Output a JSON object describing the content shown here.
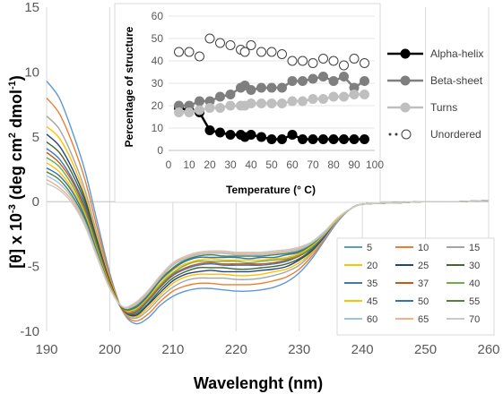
{
  "chart_data": [
    {
      "type": "line",
      "title": "",
      "xlabel": "Wavelenght (nm)",
      "ylabel": "[θ] x 10⁻³ (deg cm² dmol⁻¹)",
      "ylabel_parts": [
        "[θ] x 10",
        "-3",
        " (deg cm",
        "2",
        " dmol",
        "-1",
        ")"
      ],
      "xlim": [
        190,
        260
      ],
      "ylim": [
        -10,
        15
      ],
      "x_ticks": [
        190,
        200,
        210,
        220,
        230,
        240,
        250,
        260
      ],
      "y_ticks": [
        -10,
        -5,
        0,
        5,
        10,
        15
      ],
      "x_tick_labels": [
        "190",
        "200",
        "210",
        "220",
        "230",
        "240",
        "250",
        "260"
      ],
      "y_tick_labels": [
        "-10",
        "-5",
        "0",
        "5",
        "10",
        "15"
      ],
      "grid": "vertical",
      "legend_position": "bottom-right",
      "x": [
        190,
        192,
        194,
        196,
        198,
        200,
        202,
        204,
        206,
        208,
        210,
        212,
        214,
        216,
        218,
        220,
        222,
        224,
        226,
        228,
        230,
        232,
        234,
        236,
        238,
        240,
        245,
        250,
        255,
        260
      ],
      "series": [
        {
          "name": "5",
          "color": "#5B9BD5",
          "values": [
            9.3,
            8.0,
            5.5,
            2.5,
            -1.5,
            -5.5,
            -8.4,
            -9.4,
            -9.0,
            -8.0,
            -7.3,
            -6.9,
            -6.7,
            -6.7,
            -6.8,
            -6.9,
            -6.9,
            -6.8,
            -6.6,
            -6.2,
            -5.5,
            -4.4,
            -3.0,
            -1.6,
            -0.6,
            -0.2,
            -0.1,
            0.0,
            0.0,
            0.1
          ]
        },
        {
          "name": "10",
          "color": "#ED7D31",
          "values": [
            8.0,
            6.8,
            4.6,
            1.8,
            -2.0,
            -5.7,
            -8.4,
            -9.2,
            -8.7,
            -7.7,
            -6.9,
            -6.5,
            -6.3,
            -6.3,
            -6.4,
            -6.4,
            -6.4,
            -6.3,
            -6.1,
            -5.8,
            -5.2,
            -4.2,
            -2.9,
            -1.5,
            -0.6,
            -0.2,
            -0.1,
            0.0,
            0.0,
            0.1
          ]
        },
        {
          "name": "15",
          "color": "#A5A5A5",
          "values": [
            6.6,
            5.6,
            3.6,
            1.0,
            -2.5,
            -5.9,
            -8.4,
            -9.0,
            -8.4,
            -7.4,
            -6.6,
            -6.1,
            -5.9,
            -5.9,
            -5.9,
            -6.0,
            -6.0,
            -5.9,
            -5.7,
            -5.4,
            -4.9,
            -4.0,
            -2.8,
            -1.5,
            -0.6,
            -0.2,
            -0.1,
            0.0,
            0.0,
            0.1
          ]
        },
        {
          "name": "20",
          "color": "#FFC000",
          "values": [
            5.8,
            4.9,
            3.1,
            0.6,
            -2.8,
            -6.0,
            -8.3,
            -8.9,
            -8.2,
            -7.2,
            -6.3,
            -5.8,
            -5.6,
            -5.6,
            -5.6,
            -5.7,
            -5.7,
            -5.6,
            -5.4,
            -5.2,
            -4.7,
            -3.9,
            -2.7,
            -1.4,
            -0.6,
            -0.2,
            -0.1,
            0.0,
            0.0,
            0.1
          ]
        },
        {
          "name": "25",
          "color": "#264478",
          "values": [
            5.2,
            4.3,
            2.6,
            0.3,
            -3.0,
            -6.1,
            -8.3,
            -8.8,
            -8.0,
            -7.0,
            -6.1,
            -5.6,
            -5.4,
            -5.3,
            -5.4,
            -5.4,
            -5.4,
            -5.3,
            -5.2,
            -5.0,
            -4.5,
            -3.8,
            -2.7,
            -1.4,
            -0.6,
            -0.2,
            -0.1,
            0.0,
            0.0,
            0.1
          ]
        },
        {
          "name": "30",
          "color": "#43682B",
          "values": [
            4.6,
            3.8,
            2.2,
            0.0,
            -3.2,
            -6.2,
            -8.3,
            -8.7,
            -7.9,
            -6.8,
            -5.9,
            -5.4,
            -5.1,
            -5.1,
            -5.1,
            -5.2,
            -5.2,
            -5.1,
            -5.0,
            -4.8,
            -4.4,
            -3.7,
            -2.6,
            -1.4,
            -0.6,
            -0.2,
            -0.1,
            0.0,
            0.0,
            0.1
          ]
        },
        {
          "name": "35",
          "color": "#4472C4",
          "values": [
            4.1,
            3.3,
            1.8,
            -0.3,
            -3.4,
            -6.3,
            -8.3,
            -8.6,
            -7.7,
            -6.6,
            -5.7,
            -5.2,
            -4.9,
            -4.8,
            -4.9,
            -4.9,
            -4.9,
            -4.9,
            -4.8,
            -4.6,
            -4.2,
            -3.6,
            -2.6,
            -1.4,
            -0.6,
            -0.2,
            -0.1,
            0.0,
            0.0,
            0.1
          ]
        },
        {
          "name": "37",
          "color": "#C55A11",
          "values": [
            3.8,
            3.0,
            1.6,
            -0.5,
            -3.5,
            -6.3,
            -8.3,
            -8.5,
            -7.6,
            -6.5,
            -5.6,
            -5.1,
            -4.8,
            -4.7,
            -4.8,
            -4.8,
            -4.8,
            -4.8,
            -4.7,
            -4.5,
            -4.2,
            -3.5,
            -2.5,
            -1.4,
            -0.6,
            -0.2,
            -0.1,
            0.0,
            0.0,
            0.1
          ]
        },
        {
          "name": "40",
          "color": "#70AD47",
          "values": [
            3.4,
            2.7,
            1.3,
            -0.7,
            -3.6,
            -6.4,
            -8.2,
            -8.4,
            -7.5,
            -6.4,
            -5.5,
            -4.9,
            -4.6,
            -4.6,
            -4.6,
            -4.6,
            -4.7,
            -4.6,
            -4.5,
            -4.4,
            -4.1,
            -3.5,
            -2.5,
            -1.4,
            -0.6,
            -0.2,
            -0.1,
            0.0,
            0.0,
            0.1
          ]
        },
        {
          "name": "45",
          "color": "#FFC000",
          "values": [
            3.0,
            2.3,
            1.0,
            -0.9,
            -3.8,
            -6.4,
            -8.2,
            -8.3,
            -7.4,
            -6.3,
            -5.3,
            -4.8,
            -4.5,
            -4.4,
            -4.5,
            -4.5,
            -4.5,
            -4.5,
            -4.4,
            -4.3,
            -4.0,
            -3.4,
            -2.5,
            -1.4,
            -0.6,
            -0.2,
            -0.1,
            0.0,
            0.0,
            0.1
          ]
        },
        {
          "name": "50",
          "color": "#2E75B6",
          "values": [
            2.6,
            2.0,
            0.8,
            -1.1,
            -3.9,
            -6.5,
            -8.2,
            -8.2,
            -7.3,
            -6.1,
            -5.2,
            -4.6,
            -4.3,
            -4.3,
            -4.3,
            -4.3,
            -4.4,
            -4.3,
            -4.3,
            -4.1,
            -3.9,
            -3.3,
            -2.4,
            -1.3,
            -0.6,
            -0.2,
            -0.1,
            0.0,
            0.0,
            0.1
          ]
        },
        {
          "name": "55",
          "color": "#548235",
          "values": [
            2.3,
            1.7,
            0.5,
            -1.3,
            -4.0,
            -6.5,
            -8.2,
            -8.1,
            -7.2,
            -6.0,
            -5.1,
            -4.5,
            -4.2,
            -4.1,
            -4.2,
            -4.2,
            -4.2,
            -4.2,
            -4.1,
            -4.0,
            -3.8,
            -3.3,
            -2.4,
            -1.3,
            -0.6,
            -0.2,
            -0.1,
            0.0,
            0.0,
            0.1
          ]
        },
        {
          "name": "60",
          "color": "#9DC3E6",
          "values": [
            2.0,
            1.4,
            0.3,
            -1.5,
            -4.1,
            -6.6,
            -8.1,
            -8.0,
            -7.1,
            -5.9,
            -4.9,
            -4.4,
            -4.1,
            -4.0,
            -4.0,
            -4.1,
            -4.1,
            -4.1,
            -4.0,
            -3.9,
            -3.7,
            -3.2,
            -2.4,
            -1.3,
            -0.6,
            -0.2,
            -0.1,
            0.0,
            0.0,
            0.1
          ]
        },
        {
          "name": "65",
          "color": "#F4B183",
          "values": [
            1.7,
            1.1,
            0.1,
            -1.7,
            -4.2,
            -6.6,
            -8.1,
            -7.9,
            -7.0,
            -5.8,
            -4.8,
            -4.3,
            -4.0,
            -3.9,
            -3.9,
            -4.0,
            -4.0,
            -4.0,
            -3.9,
            -3.8,
            -3.6,
            -3.1,
            -2.3,
            -1.3,
            -0.6,
            -0.2,
            -0.1,
            0.0,
            0.0,
            0.1
          ]
        },
        {
          "name": "70",
          "color": "#C9C9C9",
          "values": [
            1.4,
            0.9,
            -0.1,
            -1.8,
            -4.3,
            -6.7,
            -8.1,
            -7.8,
            -6.9,
            -5.7,
            -4.7,
            -4.2,
            -3.9,
            -3.8,
            -3.8,
            -3.9,
            -3.9,
            -3.9,
            -3.8,
            -3.7,
            -3.5,
            -3.1,
            -2.3,
            -1.3,
            -0.6,
            -0.2,
            -0.1,
            0.0,
            0.0,
            0.1
          ]
        }
      ]
    },
    {
      "type": "line",
      "title": "",
      "xlabel": "Temperature (° C)",
      "ylabel": "Percentage of structure",
      "xlim": [
        0,
        100
      ],
      "ylim": [
        0,
        60
      ],
      "x_ticks": [
        0,
        10,
        20,
        30,
        40,
        50,
        60,
        70,
        80,
        90,
        100
      ],
      "y_ticks": [
        0,
        10,
        20,
        30,
        40,
        50,
        60
      ],
      "x_tick_labels": [
        "0",
        "10",
        "20",
        "30",
        "40",
        "50",
        "60",
        "70",
        "80",
        "90",
        "100"
      ],
      "y_tick_labels": [
        "0",
        "10",
        "20",
        "30",
        "40",
        "50",
        "60"
      ],
      "grid": "horizontal",
      "legend_position": "right",
      "x": [
        5,
        10,
        15,
        20,
        25,
        30,
        35,
        37,
        40,
        45,
        50,
        55,
        60,
        65,
        70,
        75,
        80,
        85,
        90,
        95
      ],
      "series": [
        {
          "name": "Alpha-helix",
          "color": "#000000",
          "fill": "#000000",
          "line": true,
          "dotted": false,
          "values": [
            19,
            18,
            17,
            9,
            8,
            7,
            7,
            6,
            7,
            6,
            5,
            5,
            7,
            5,
            5,
            5,
            5,
            5,
            5,
            5
          ]
        },
        {
          "name": "Beta-sheet",
          "color": "#7F7F7F",
          "fill": "#7F7F7F",
          "line": true,
          "dotted": false,
          "values": [
            20,
            20,
            22,
            22,
            24,
            25,
            28,
            29,
            27,
            28,
            28,
            28,
            31,
            31,
            32,
            33,
            31,
            33,
            28,
            31
          ]
        },
        {
          "name": "Turns",
          "color": "#BFBFBF",
          "fill": "#BFBFBF",
          "line": true,
          "dotted": false,
          "values": [
            17,
            17,
            18,
            19,
            19,
            20,
            20,
            20,
            21,
            21,
            21,
            21,
            22,
            22,
            23,
            23,
            24,
            24,
            25,
            25
          ]
        },
        {
          "name": "Unordered",
          "color": "#404040",
          "fill": "#FFFFFF",
          "line": false,
          "dotted": true,
          "values": [
            44,
            44,
            42,
            50,
            48,
            47,
            45,
            44,
            47,
            44,
            44,
            43,
            40,
            40,
            39,
            41,
            40,
            38,
            41,
            39
          ]
        }
      ]
    }
  ]
}
